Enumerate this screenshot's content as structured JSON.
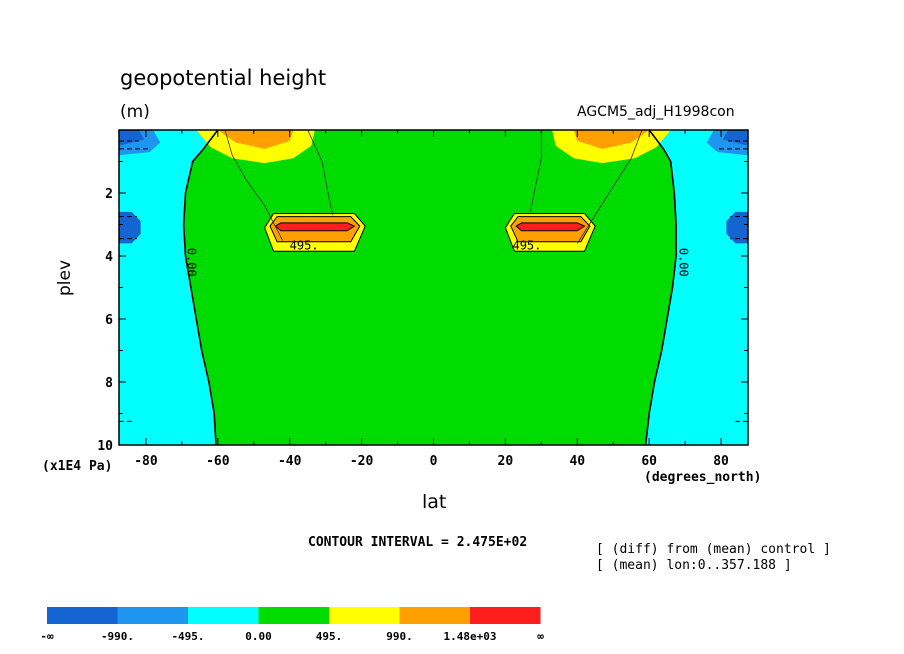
{
  "chart_data": {
    "type": "heatmap",
    "title": "geopotential height",
    "units": "(m)",
    "run_label": "AGCM5_adj_H1998con",
    "xlabel": "lat",
    "x_units": "(degrees_north)",
    "ylabel": "plev",
    "y_units": "(x1E4 Pa)",
    "xlim": [
      -87.5,
      87.5
    ],
    "ylim": [
      0,
      10
    ],
    "y_inverted": true,
    "x_ticks": [
      "-80",
      "-60",
      "-40",
      "-20",
      "0",
      "20",
      "40",
      "60",
      "80"
    ],
    "x_tick_values": [
      -80,
      -60,
      -40,
      -20,
      0,
      20,
      40,
      60,
      80
    ],
    "y_ticks": [
      "2",
      "4",
      "6",
      "8",
      "10"
    ],
    "y_tick_values": [
      2,
      4,
      6,
      8,
      10
    ],
    "contour_interval": "CONTOUR INTERVAL = 2.475E+02",
    "contour_labels": [
      {
        "text": "495.",
        "lat": -36,
        "plev": 3.8
      },
      {
        "text": "495.",
        "lat": 26,
        "plev": 3.8
      },
      {
        "text": "0.00",
        "lat": -68.5,
        "plev": 4.2,
        "rotated": true
      },
      {
        "text": "0.00",
        "lat": 68.5,
        "plev": 4.2,
        "rotated": true
      }
    ],
    "features": [
      {
        "name": "midlatitude max south",
        "lat_range": [
          -48,
          -20
        ],
        "plev_range": [
          2.6,
          3.9
        ],
        "peak": ">1.48e+03"
      },
      {
        "name": "midlatitude max north",
        "lat_range": [
          20,
          45
        ],
        "plev_range": [
          2.6,
          3.9
        ],
        "peak": ">1.48e+03"
      },
      {
        "name": "upper max south",
        "lat_range": [
          -66,
          -32
        ],
        "plev_range": [
          0,
          1.1
        ],
        "peak": "990-1.48e+03"
      },
      {
        "name": "upper max north",
        "lat_range": [
          30,
          66
        ],
        "plev_range": [
          0,
          1.1
        ],
        "peak": "990-1.48e+03"
      },
      {
        "name": "polar min south",
        "lat_range": [
          -87.5,
          -73
        ],
        "plev_range": [
          0,
          3.9
        ],
        "peak": "<-990"
      },
      {
        "name": "polar min north",
        "lat_range": [
          74,
          87.5
        ],
        "plev_range": [
          0,
          3.9
        ],
        "peak": "<-990"
      }
    ],
    "colorbar": {
      "colors": [
        "#1464d2",
        "#1e96f0",
        "#00ffff",
        "#00dc00",
        "#ffff00",
        "#ffa000",
        "#ff1e1e"
      ],
      "labels": [
        "-∞",
        "-990.",
        "-495.",
        "0.00",
        "495.",
        "990.",
        "1.48e+03",
        "∞"
      ]
    }
  },
  "notes": [
    "[ (diff) from (mean) control ]",
    "[ (mean) lon:0..357.188 ]"
  ]
}
